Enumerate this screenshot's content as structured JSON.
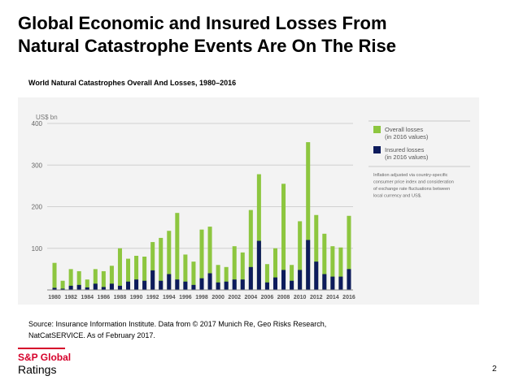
{
  "slide": {
    "title_line1": "Global Economic and Insured Losses From",
    "title_line2": "Natural Catastrophe Events Are On The Rise",
    "page_number": "2"
  },
  "source": {
    "line1": "Source: Insurance Information Institute.  Data from © 2017 Munich Re, Geo Risks Research,",
    "line2": "NatCatSERVICE. As of February 2017."
  },
  "brand": {
    "name": "S&P Global",
    "subtitle": "Ratings",
    "color": "#d6002a"
  },
  "chart_data": {
    "type": "bar",
    "title": "World Natural Catastrophes Overall And Losses, 1980–2016",
    "unit_label": "US$ bn",
    "xlabel": "",
    "ylabel": "",
    "ylim": [
      0,
      400
    ],
    "yticks": [
      400,
      300,
      200,
      100
    ],
    "grid": true,
    "legend_position": "right",
    "categories": [
      "1980",
      "1981",
      "1982",
      "1983",
      "1984",
      "1985",
      "1986",
      "1987",
      "1988",
      "1989",
      "1990",
      "1991",
      "1992",
      "1993",
      "1994",
      "1995",
      "1996",
      "1997",
      "1998",
      "1999",
      "2000",
      "2001",
      "2002",
      "2003",
      "2004",
      "2005",
      "2006",
      "2007",
      "2008",
      "2009",
      "2010",
      "2011",
      "2012",
      "2013",
      "2014",
      "2015",
      "2016"
    ],
    "xtick_labels": [
      "1980",
      "1982",
      "1984",
      "1986",
      "1988",
      "1990",
      "1992",
      "1994",
      "1996",
      "1998",
      "2000",
      "2002",
      "2004",
      "2006",
      "2008",
      "2010",
      "2012",
      "2014",
      "2016"
    ],
    "series": [
      {
        "name": "Overall losses (in 2016 values)",
        "color": "#8dc63f",
        "values": [
          65,
          22,
          50,
          45,
          25,
          50,
          45,
          58,
          100,
          75,
          82,
          80,
          115,
          125,
          142,
          185,
          85,
          68,
          145,
          152,
          60,
          55,
          105,
          90,
          192,
          278,
          62,
          100,
          255,
          60,
          165,
          355,
          180,
          135,
          105,
          102,
          178
        ]
      },
      {
        "name": "Insured losses (in 2016 values)",
        "color": "#0d1b5c",
        "values": [
          5,
          3,
          10,
          12,
          6,
          15,
          7,
          15,
          10,
          20,
          25,
          22,
          47,
          22,
          38,
          25,
          20,
          12,
          28,
          40,
          18,
          20,
          25,
          25,
          55,
          118,
          18,
          30,
          48,
          22,
          48,
          120,
          68,
          38,
          32,
          32,
          50
        ]
      }
    ],
    "note": "Inflation adjusted via country-specific consumer price index and consideration of exchange rate fluctuations between local currency and US$.",
    "note_lines": [
      "Inflation adjusted via country-specific",
      "consumer price index and consideration",
      "of exchange rate fluctuations between",
      "local currency and US$."
    ],
    "legend": [
      {
        "line1": "Overall losses",
        "line2": "(in 2016 values)"
      },
      {
        "line1": "Insured losses",
        "line2": "(in 2016 values)"
      }
    ]
  }
}
